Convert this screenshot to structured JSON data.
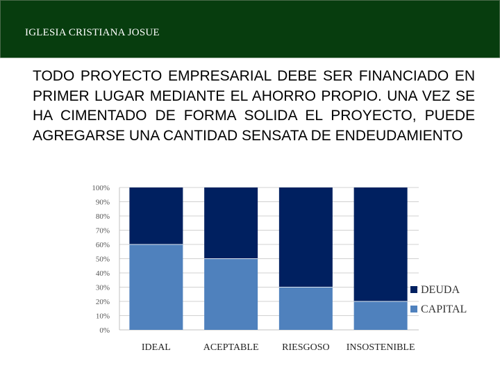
{
  "header": {
    "title": "IGLESIA CRISTIANA JOSUE",
    "background": "#073d0e"
  },
  "body_text": "TODO PROYECTO EMPRESARIAL DEBE SER FINANCIADO EN PRIMER LUGAR MEDIANTE EL AHORRO PROPIO. UNA VEZ SE HA CIMENTADO DE FORMA SOLIDA EL PROYECTO, PUEDE AGREGARSE UNA CANTIDAD SENSATA DE ENDEUDAMIENTO",
  "chart_data": {
    "type": "bar",
    "stacked": true,
    "categories": [
      "IDEAL",
      "ACEPTABLE",
      "RIESGOSO",
      "INSOSTENIBLE"
    ],
    "series": [
      {
        "name": "CAPITAL",
        "values": [
          60,
          50,
          30,
          20
        ],
        "color": "#4f81bd"
      },
      {
        "name": "DEUDA",
        "values": [
          40,
          50,
          70,
          80
        ],
        "color": "#002060"
      }
    ],
    "yticks": [
      "0%",
      "10%",
      "20%",
      "30%",
      "40%",
      "50%",
      "60%",
      "70%",
      "80%",
      "90%",
      "100%"
    ],
    "ylim": [
      0,
      100
    ],
    "grid": true,
    "legend_position": "right"
  }
}
